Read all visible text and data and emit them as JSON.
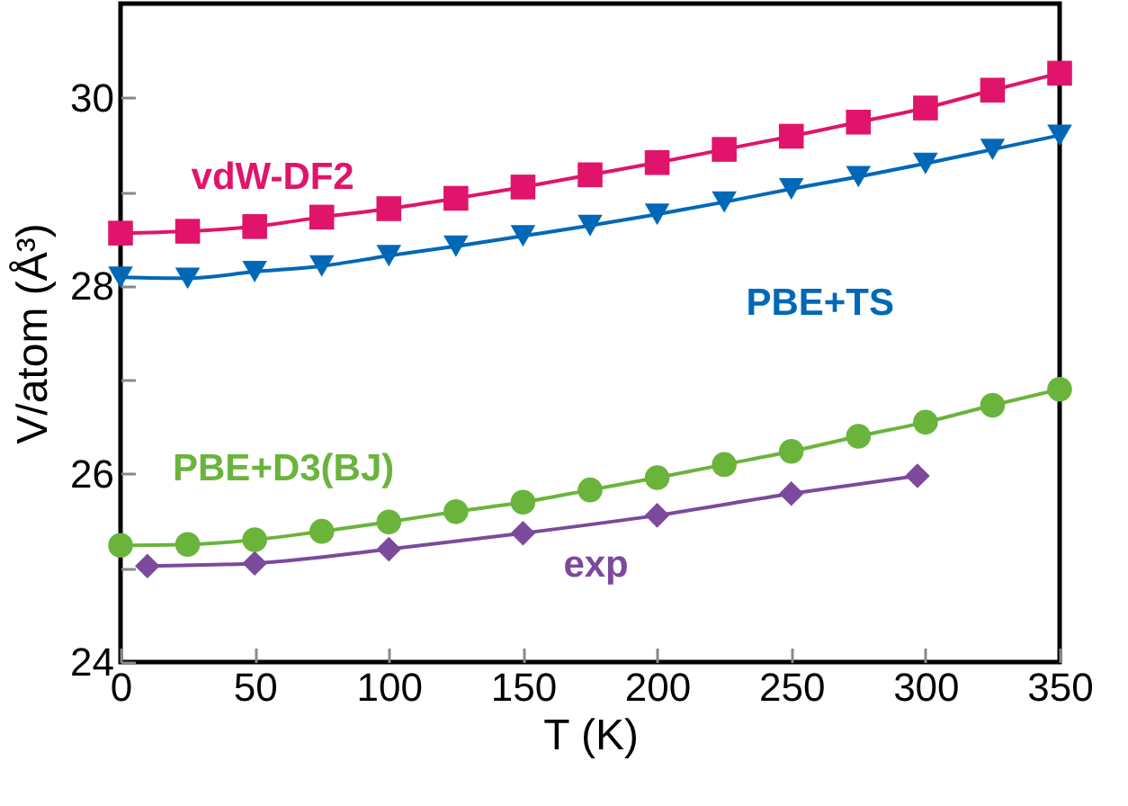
{
  "chart_data": {
    "type": "line",
    "xlabel": "T (K)",
    "ylabel": "V/atom (Å³)",
    "xlim": [
      0,
      350
    ],
    "xticks": [
      0,
      50,
      100,
      150,
      200,
      250,
      300,
      350
    ],
    "ylim": [
      24,
      31
    ],
    "yticks": [
      24,
      {
        "value": 25,
        "label": null
      },
      26,
      {
        "value": 27,
        "label": null
      },
      28,
      {
        "value": 29,
        "label": null
      },
      30
    ],
    "x": [
      0,
      25,
      50,
      75,
      100,
      125,
      150,
      175,
      200,
      225,
      250,
      275,
      300,
      325,
      350
    ],
    "line_style": "solid",
    "series": [
      {
        "name": "vdW-DF2",
        "color": "#e0146a",
        "marker": "square",
        "values": [
          28.56,
          28.58,
          28.63,
          28.73,
          28.82,
          28.93,
          29.05,
          29.18,
          29.31,
          29.45,
          29.59,
          29.74,
          29.89,
          30.08,
          30.26
        ]
      },
      {
        "name": "PBE+TS",
        "color": "#0068b7",
        "marker": "triangle",
        "values": [
          28.09,
          28.08,
          28.15,
          28.21,
          28.32,
          28.42,
          28.53,
          28.64,
          28.76,
          28.89,
          29.03,
          29.16,
          29.3,
          29.45,
          29.6
        ]
      },
      {
        "name": "PBE+D3(BJ)",
        "color": "#6ab43c",
        "marker": "circle",
        "values": [
          25.24,
          25.25,
          25.3,
          25.39,
          25.49,
          25.6,
          25.7,
          25.83,
          25.96,
          26.1,
          26.24,
          26.4,
          26.55,
          26.73,
          26.9
        ]
      },
      {
        "name": "exp",
        "color": "#7b4a9c",
        "marker": "diamond",
        "x": [
          10,
          50,
          100,
          150,
          200,
          250,
          297
        ],
        "values": [
          25.02,
          25.05,
          25.2,
          25.37,
          25.56,
          25.79,
          25.98
        ]
      }
    ]
  }
}
